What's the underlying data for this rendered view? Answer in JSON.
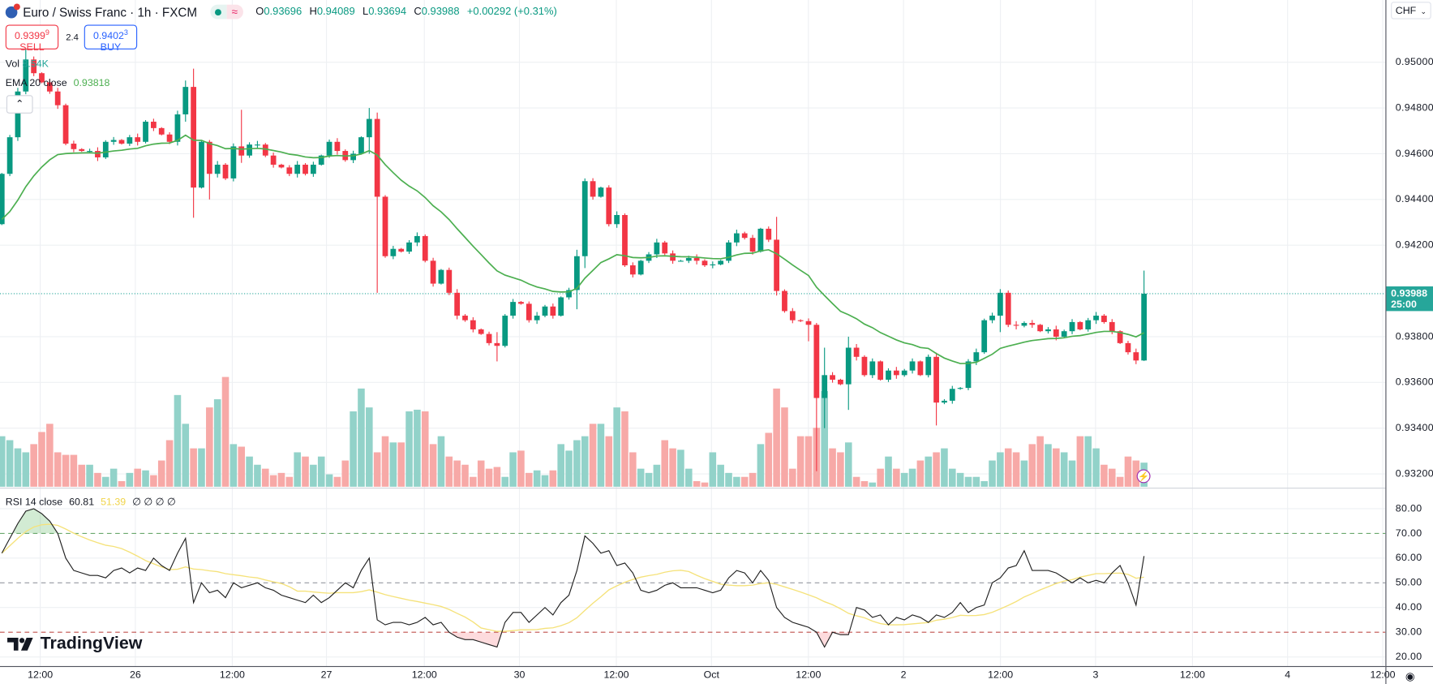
{
  "header": {
    "title": "Euro / Swiss Franc · 1h · FXCM",
    "o_label": "O",
    "o": "0.93696",
    "h_label": "H",
    "h": "0.94089",
    "l_label": "L",
    "l": "0.93694",
    "c_label": "C",
    "c": "0.93988",
    "change": "+0.00292 (+0.31%)"
  },
  "trade": {
    "sell_price": "0.9399",
    "sell_pip": "9",
    "sell_label": "SELL",
    "spread": "2.4",
    "buy_price": "0.9402",
    "buy_pip": "3",
    "buy_label": "BUY"
  },
  "legend": {
    "vol_label": "Vol",
    "vol_value": "8.54K",
    "ema_label": "EMA 20 close",
    "ema_value": "0.93818",
    "rsi_label": "RSI 14 close",
    "rsi_value": "60.81",
    "rsi_ma_value": "51.39",
    "rsi_na": "∅ ∅ ∅ ∅"
  },
  "axis": {
    "currency": "CHF",
    "current_price": "0.93988",
    "countdown": "25:00",
    "price_ticks": [
      "0.95000",
      "0.94800",
      "0.94600",
      "0.94400",
      "0.94200",
      "0.93800",
      "0.93600",
      "0.93400",
      "0.93200"
    ],
    "rsi_ticks": [
      "80.00",
      "70.00",
      "60.00",
      "50.00",
      "40.00",
      "30.00",
      "20.00"
    ],
    "time_ticks": [
      "12:00",
      "26",
      "12:00",
      "27",
      "12:00",
      "30",
      "12:00",
      "Oct",
      "12:00",
      "2",
      "12:00",
      "3",
      "12:00",
      "4",
      "12:00"
    ]
  },
  "brand": "TradingView",
  "colors": {
    "up": "#089981",
    "down": "#f23645",
    "vol_up": "#92d2c9",
    "vol_down": "#f7a9a7",
    "ema": "#4caf50",
    "rsi": "#1e1e1e",
    "rsi_ma": "#f5e27a",
    "accent": "#26a69a"
  },
  "chart_data": {
    "type": "candlestick",
    "title": "Euro / Swiss Franc · 1h · FXCM",
    "ylabel": "CHF",
    "ylim": [
      0.9315,
      0.9512
    ],
    "x_unit": "1h candles",
    "first_open": 0.94292,
    "closes": [
      0.94512,
      0.94672,
      0.94872,
      0.95012,
      0.94952,
      0.94912,
      0.94872,
      0.94812,
      0.94644,
      0.9462,
      0.94612,
      0.94612,
      0.94584,
      0.94652,
      0.9466,
      0.94644,
      0.94672,
      0.94652,
      0.9474,
      0.94712,
      0.94684,
      0.94652,
      0.94772,
      0.94892,
      0.94452,
      0.94652,
      0.94512,
      0.94552,
      0.94492,
      0.94632,
      0.94592,
      0.9464,
      0.9464,
      0.94592,
      0.94552,
      0.9454,
      0.94512,
      0.94552,
      0.94512,
      0.94552,
      0.94592,
      0.94652,
      0.94612,
      0.94572,
      0.946,
      0.94672,
      0.94752,
      0.94412,
      0.94152,
      0.94184,
      0.94172,
      0.94212,
      0.9424,
      0.94132,
      0.94032,
      0.94092,
      0.93992,
      0.93892,
      0.93872,
      0.93832,
      0.93812,
      0.93772,
      0.9376,
      0.93892,
      0.93952,
      0.93944,
      0.93872,
      0.93892,
      0.93932,
      0.93892,
      0.93972,
      0.94004,
      0.94152,
      0.9448,
      0.94412,
      0.94452,
      0.94292,
      0.94332,
      0.94112,
      0.94072,
      0.94132,
      0.9416,
      0.94212,
      0.94164,
      0.94132,
      0.94132,
      0.94144,
      0.94132,
      0.94112,
      0.94116,
      0.94132,
      0.94212,
      0.94252,
      0.94232,
      0.94172,
      0.94272,
      0.94224,
      0.94,
      0.93912,
      0.93872,
      0.93868,
      0.93852,
      0.93532,
      0.93632,
      0.93612,
      0.93592,
      0.93752,
      0.93712,
      0.93632,
      0.93692,
      0.93612,
      0.93652,
      0.93632,
      0.93652,
      0.93692,
      0.93632,
      0.93712,
      0.93512,
      0.9352,
      0.93572,
      0.93576,
      0.93692,
      0.93732,
      0.93872,
      0.93892,
      0.93992,
      0.93852,
      0.93848,
      0.9386,
      0.93852,
      0.93824,
      0.93832,
      0.938,
      0.93824,
      0.93864,
      0.93832,
      0.93872,
      0.93892,
      0.93864,
      0.93824,
      0.93772,
      0.93732,
      0.93696,
      0.93988
    ],
    "wick_overrides": {
      "3": [
        0.95092,
        0.9486
      ],
      "23": [
        0.9492,
        0.9474
      ],
      "24": [
        0.94972,
        0.9432
      ],
      "26": [
        0.9466,
        0.944
      ],
      "30": [
        0.94792,
        0.9456
      ],
      "46": [
        0.948,
        0.946
      ],
      "47": [
        0.9478,
        0.93992
      ],
      "62": [
        0.9382,
        0.93692
      ],
      "72": [
        0.9418,
        0.9392
      ],
      "73": [
        0.94492,
        0.941
      ],
      "97": [
        0.94324,
        0.9398
      ],
      "101": [
        0.9388,
        0.9378
      ],
      "102": [
        0.9386,
        0.93212
      ],
      "103": [
        0.93752,
        0.934
      ],
      "106": [
        0.938,
        0.9348
      ],
      "117": [
        0.9373,
        0.93412
      ],
      "125": [
        0.94008,
        0.9382
      ],
      "143": [
        0.94089,
        0.93694
      ]
    },
    "volume_k": [
      17.9,
      16.5,
      13.6,
      12.2,
      15.1,
      19.4,
      22.3,
      12.2,
      11.3,
      11.3,
      7.8,
      7.8,
      4.9,
      3.5,
      6.4,
      2.0,
      4.9,
      6.4,
      5.8,
      4.1,
      9.3,
      16.5,
      32.5,
      22.3,
      13.6,
      13.6,
      28.1,
      31.0,
      38.9,
      15.1,
      14.2,
      10.7,
      7.8,
      6.4,
      4.1,
      4.9,
      3.5,
      12.2,
      10.7,
      7.8,
      10.7,
      4.4,
      3.5,
      9.3,
      26.7,
      34.8,
      28.1,
      12.2,
      17.9,
      15.7,
      15.7,
      26.7,
      27.3,
      26.7,
      15.1,
      17.9,
      10.7,
      9.3,
      7.8,
      3.5,
      9.3,
      6.4,
      7.0,
      3.5,
      12.2,
      12.8,
      4.9,
      5.8,
      4.1,
      5.8,
      15.1,
      12.8,
      16.5,
      17.9,
      22.3,
      22.3,
      17.9,
      28.1,
      26.7,
      12.2,
      6.4,
      4.9,
      7.8,
      16.5,
      13.6,
      13.1,
      6.4,
      2.0,
      1.5,
      12.2,
      7.8,
      4.9,
      3.5,
      3.5,
      4.9,
      15.1,
      19.1,
      34.8,
      28.1,
      6.4,
      17.9,
      17.9,
      20.9,
      33.9,
      13.6,
      12.2,
      15.7,
      3.5,
      2.0,
      1.5,
      6.4,
      10.7,
      6.4,
      4.9,
      6.4,
      9.3,
      10.7,
      12.2,
      13.6,
      6.4,
      4.9,
      3.5,
      3.5,
      2.0,
      9.3,
      12.2,
      13.6,
      12.2,
      9.3,
      15.1,
      17.9,
      15.1,
      13.6,
      12.2,
      9.3,
      17.9,
      17.9,
      13.6,
      7.8,
      6.4,
      3.5,
      10.7,
      9.3,
      8.54
    ],
    "ema_period": 20,
    "rsi": {
      "period": 14,
      "ylim": [
        15,
        85
      ],
      "levels": [
        70,
        50,
        30
      ],
      "values": [
        62,
        68,
        74,
        79,
        80,
        78,
        75,
        70,
        60,
        55,
        54,
        53,
        53,
        52,
        55,
        56,
        54,
        56,
        55,
        60,
        57,
        55,
        62,
        68,
        42,
        50,
        46,
        47,
        44,
        50,
        48,
        49,
        50,
        48,
        47,
        45,
        44,
        43,
        42,
        45,
        42,
        44,
        47,
        50,
        48,
        55,
        60,
        35,
        33,
        34,
        34,
        33,
        34,
        36,
        33,
        34,
        30,
        28,
        27,
        27,
        26,
        25,
        24,
        34,
        38,
        38,
        34,
        37,
        40,
        37,
        42,
        45,
        55,
        69,
        66,
        62,
        63,
        57,
        58,
        54,
        47,
        46,
        47,
        49,
        50,
        48,
        48,
        48,
        47,
        46,
        47,
        52,
        55,
        54,
        50,
        55,
        51,
        40,
        36,
        34,
        33,
        32,
        30,
        24,
        30,
        29,
        29,
        40,
        39,
        36,
        37,
        33,
        36,
        35,
        37,
        36,
        34,
        37,
        36,
        38,
        42,
        38,
        40,
        41,
        50,
        52,
        56,
        57,
        63,
        55,
        55,
        55,
        54,
        52,
        50,
        52,
        50,
        51,
        50,
        54,
        57,
        50,
        41,
        60.81
      ],
      "ma_period": 14
    }
  }
}
